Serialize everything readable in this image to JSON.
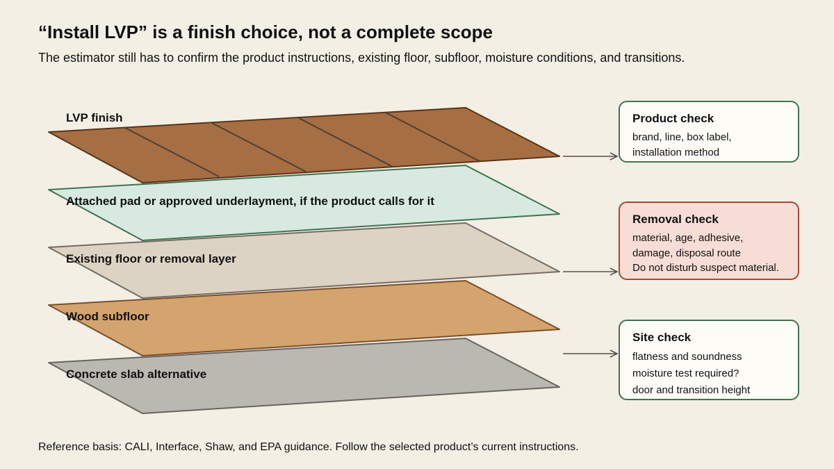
{
  "title": "“Install LVP” is a finish choice, not a complete scope",
  "subtitle": "The estimator still has to confirm the product instructions, existing floor, subfloor, moisture conditions, and transitions.",
  "layers": [
    {
      "label": "LVP finish",
      "fill": "#a66e43",
      "stroke": "#5a3418",
      "plank_color": "#4c4036"
    },
    {
      "label": "Attached pad or approved underlayment, if the product calls for it",
      "fill": "#d8eae0",
      "stroke": "#3f7252"
    },
    {
      "label": "Existing floor or removal layer",
      "fill": "#ddd3c5",
      "stroke": "#756b62"
    },
    {
      "label": "Wood subfloor",
      "fill": "#d4a46f",
      "stroke": "#7a4f2c"
    },
    {
      "label": "Concrete slab alternative",
      "fill": "#bbb8b1",
      "stroke": "#68645e"
    }
  ],
  "cards": {
    "product": {
      "title": "Product check",
      "lines": [
        "brand, line, box label,",
        "installation method"
      ]
    },
    "removal": {
      "title": "Removal check",
      "lines": [
        "material, age, adhesive,",
        "damage, disposal route",
        "Do not disturb suspect material."
      ]
    },
    "site": {
      "title": "Site check",
      "lines": [
        "flatness and soundness",
        "moisture test required?",
        "door and transition height"
      ]
    }
  },
  "footnote": "Reference basis: CALI, Interface, Shaw, and EPA guidance. Follow the selected product’s current instructions.",
  "colors": {
    "background": "#f3efe5",
    "card_green": "#3f7252",
    "card_red": "#a84630",
    "card_red_fill": "#f7ddd5",
    "arrow": "#555049"
  }
}
